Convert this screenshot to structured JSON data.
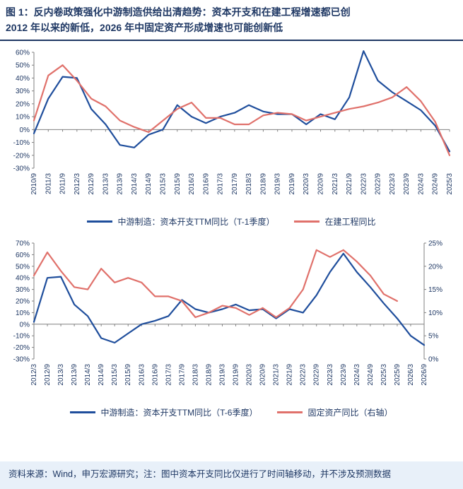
{
  "title": {
    "line1": "图 1：反内卷政策强化中游制造供给出清趋势：资本开支和在建工程增速都已创",
    "line2": "2012 年以来的新低，2026 年中固定资产形成增速也可能创新低"
  },
  "colors": {
    "blue": "#1F4E9C",
    "red": "#E0716B",
    "title": "#1F3864",
    "label": "#1F3864",
    "axis": "#808080",
    "footer_bg": "#E8F0F9"
  },
  "footer": {
    "text": "资料来源：Wind，申万宏源研究；注：图中资本开支同比仅进行了时间轴移动，并不涉及预测数据"
  },
  "chart_data": [
    {
      "type": "line",
      "title": "",
      "categories": [
        "2010/9",
        "2011/3",
        "2011/9",
        "2012/3",
        "2012/9",
        "2013/3",
        "2013/9",
        "2014/3",
        "2014/9",
        "2015/3",
        "2015/9",
        "2016/3",
        "2016/9",
        "2017/3",
        "2017/9",
        "2018/3",
        "2018/9",
        "2019/3",
        "2019/9",
        "2020/3",
        "2020/9",
        "2021/3",
        "2021/9",
        "2022/3",
        "2022/9",
        "2023/3",
        "2023/9",
        "2024/3",
        "2024/9",
        "2025/3"
      ],
      "y_left": {
        "min": -30,
        "max": 60,
        "step": 10,
        "format": "percent"
      },
      "legend_position": "bottom",
      "grid": false,
      "series": [
        {
          "name": "中游制造：资本开支TTM同比（T-1季度）",
          "axis": "left",
          "color_key": "blue",
          "values": [
            -3,
            24,
            41,
            40,
            16,
            4,
            -12,
            -14,
            -4,
            0,
            19,
            10,
            5,
            10,
            13,
            19,
            14,
            12,
            12,
            4,
            12,
            8,
            25,
            61,
            38,
            29,
            22,
            15,
            3,
            -17
          ]
        },
        {
          "name": "在建工程同比",
          "axis": "left",
          "color_key": "red",
          "values": [
            7,
            42,
            50,
            38,
            24,
            18,
            7,
            2,
            -2,
            7,
            16,
            21,
            9,
            9,
            4,
            4,
            11,
            13,
            12,
            7,
            10,
            13,
            16,
            18,
            21,
            25,
            33,
            22,
            6,
            -20
          ]
        }
      ]
    },
    {
      "type": "line",
      "title": "",
      "categories": [
        "2012/3",
        "2012/9",
        "2013/3",
        "2013/9",
        "2014/3",
        "2014/9",
        "2015/3",
        "2015/9",
        "2016/3",
        "2016/9",
        "2017/3",
        "2017/9",
        "2018/3",
        "2018/9",
        "2019/3",
        "2019/9",
        "2020/3",
        "2020/9",
        "2021/3",
        "2021/9",
        "2022/3",
        "2022/9",
        "2023/3",
        "2023/9",
        "2024/3",
        "2024/9",
        "2025/3",
        "2025/9",
        "2026/3",
        "2026/9"
      ],
      "y_left": {
        "min": -30,
        "max": 70,
        "step": 10,
        "format": "percent"
      },
      "y_right": {
        "min": 0,
        "max": 25,
        "step": 5,
        "format": "percent"
      },
      "legend_position": "bottom",
      "grid": false,
      "series": [
        {
          "name": "中游制造：资本开支TTM同比（T-6季度）",
          "axis": "left",
          "color_key": "blue",
          "values": [
            2,
            40,
            41,
            17,
            7,
            -12,
            -16,
            -8,
            0,
            3,
            7,
            21,
            13,
            10,
            13,
            17,
            12,
            13,
            5,
            13,
            10,
            25,
            45,
            61,
            45,
            32,
            18,
            5,
            -10,
            -18
          ]
        },
        {
          "name": "固定资产同比（右轴）",
          "axis": "right",
          "color_key": "red",
          "values": [
            18,
            23,
            19,
            15.5,
            15,
            19.5,
            16.5,
            17.5,
            16.5,
            13.5,
            13.5,
            12.5,
            9,
            10,
            11.5,
            11,
            9.5,
            11,
            9,
            11,
            15,
            23.5,
            22,
            23.5,
            21,
            18,
            14,
            12.5,
            null,
            null
          ]
        }
      ]
    }
  ]
}
